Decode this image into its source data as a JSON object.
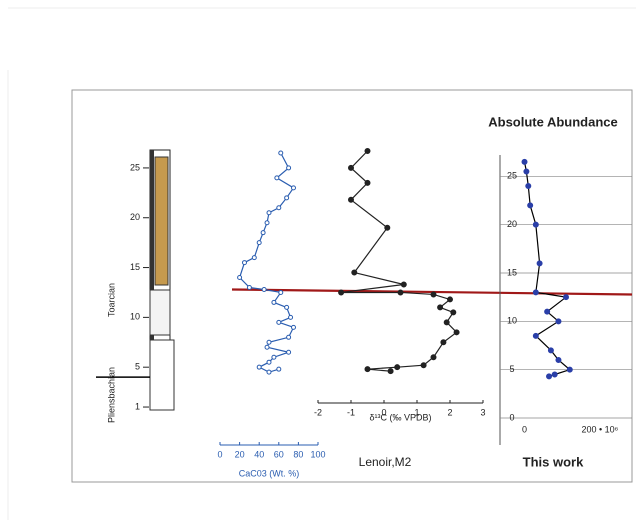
{
  "chart_data": [
    {
      "type": "column",
      "ylim": [
        0,
        27
      ],
      "yticks": [
        1,
        5,
        10,
        15,
        20,
        25
      ],
      "stages": [
        "Toarcian",
        "Pliensbachian"
      ],
      "stage_boundary": 4,
      "event_line": 12.8,
      "event_color": "#a01818"
    },
    {
      "type": "profile",
      "x_label": "CaC03 (Wt. %)",
      "xlim": [
        0,
        100
      ],
      "xticks": [
        0,
        20,
        40,
        60,
        80,
        100
      ],
      "ylim": [
        0,
        27
      ],
      "series": [
        {
          "color": "#2a5db0",
          "marker": "open",
          "x": [
            62,
            70,
            58,
            75,
            68,
            60,
            50,
            48,
            44,
            40,
            35,
            25,
            20,
            30,
            45,
            62,
            55,
            68,
            72,
            60,
            75,
            70,
            50,
            48,
            70,
            55,
            50,
            40,
            50,
            60
          ],
          "y": [
            26.5,
            25,
            24,
            23,
            22,
            21,
            20.5,
            19.5,
            18.5,
            17.5,
            16,
            15.5,
            14,
            13,
            12.8,
            12.5,
            11.5,
            11,
            10,
            9.5,
            9,
            8,
            7.5,
            7,
            6.5,
            6,
            5.5,
            5,
            4.5,
            4.8
          ]
        }
      ]
    },
    {
      "type": "profile",
      "x_label": "δ¹³C (‰ VPDB)",
      "annotation": "Lenoir,M2",
      "xlim": [
        -2,
        3
      ],
      "xticks": [
        -2,
        -1,
        0,
        1,
        2,
        3
      ],
      "ylim": [
        0,
        27
      ],
      "series": [
        {
          "color": "#222222",
          "marker": "filled",
          "x": [
            -0.5,
            -1,
            -0.5,
            -1,
            0.1,
            -0.9,
            0.6,
            -1.3,
            0.5,
            1.5,
            2,
            1.7,
            2.1,
            1.9,
            2.2,
            1.8,
            1.5,
            1.2,
            0.4,
            -0.5,
            0.2
          ],
          "y": [
            26.7,
            25,
            23.5,
            21.8,
            19,
            14.5,
            13.3,
            12.5,
            12.5,
            12.3,
            11.8,
            11,
            10.5,
            9.5,
            8.5,
            7.5,
            6,
            5.2,
            5,
            4.8,
            4.6
          ]
        }
      ]
    },
    {
      "type": "profile",
      "title": "Absolute Abundance",
      "annotation": "This work",
      "xlim": [
        -65,
        285
      ],
      "xticks": [
        0,
        {
          "value": 200,
          "label": "200 • 10⁶"
        }
      ],
      "ylim": [
        0,
        27
      ],
      "yticks": [
        0,
        5,
        10,
        15,
        20,
        25
      ],
      "grid": true,
      "series": [
        {
          "color": "#000000",
          "marker_color": "#2a3fa8",
          "marker": "filled",
          "x": [
            0,
            5,
            10,
            15,
            30,
            40,
            30,
            110,
            60,
            90,
            30,
            70,
            90,
            120,
            80,
            65
          ],
          "y": [
            26.5,
            25.5,
            24,
            22,
            20,
            16,
            13,
            12.5,
            11,
            10,
            8.5,
            7,
            6,
            5,
            4.5,
            4.3
          ]
        }
      ]
    }
  ]
}
